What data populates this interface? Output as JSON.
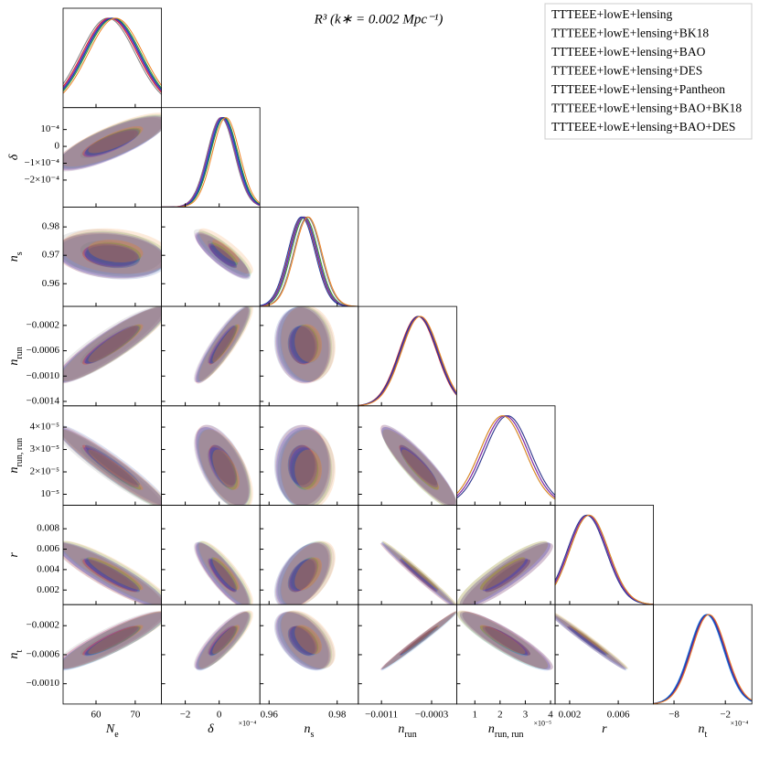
{
  "chart_data": {
    "type": "triangle",
    "title": "R³ (k∗ = 0.002 Mpc⁻¹)",
    "params": [
      {
        "label": "N",
        "sub": "e",
        "xlim": [
          51.6,
          76.7
        ],
        "xticks": [
          60,
          70
        ],
        "sd": 7
      },
      {
        "label": "δ",
        "sub": "",
        "xlim": [
          -0.00034,
          0.00024
        ],
        "ylim": [
          -0.00036,
          0.00023
        ],
        "xexp": "×10⁻⁴",
        "xticks": [
          {
            "value": -0.0002,
            "label": "−2"
          },
          0
        ],
        "yticks": [
          {
            "value": 0.0001,
            "label": "10⁻⁴"
          },
          0,
          {
            "value": -0.0001,
            "label": "−1×10⁻⁴"
          },
          {
            "value": -0.0002,
            "label": "−2×10⁻⁴"
          }
        ],
        "sd": 8e-05
      },
      {
        "label": "n",
        "sub": "s",
        "xlim": [
          0.9573,
          0.9862
        ],
        "ylim": [
          0.952,
          0.987
        ],
        "xticks": [
          0.96,
          0.98
        ],
        "yticks": [
          0.96,
          0.97,
          0.98
        ],
        "sd": 0.004
      },
      {
        "label": "n",
        "sub": "run",
        "xlim": [
          -0.00147,
          0.0001
        ],
        "ylim": [
          -0.00147,
          0.0001
        ],
        "xticks": [
          {
            "value": -0.0011,
            "label": "−0.0011"
          },
          {
            "value": -0.0003,
            "label": "−0.0003"
          }
        ],
        "yticks": [
          {
            "value": -0.0002,
            "label": "−0.0002"
          },
          {
            "value": -0.0006,
            "label": "−0.0006"
          },
          {
            "value": -0.001,
            "label": "−0.0010"
          },
          {
            "value": -0.0014,
            "label": "−0.0014"
          }
        ],
        "sd": 0.0003
      },
      {
        "label": "n",
        "sub": "run, run",
        "xlim": [
          2.8e-06,
          4.18e-05
        ],
        "ylim": [
          5.1e-06,
          4.95e-05
        ],
        "xexp": "×10⁻⁵",
        "xticks": [
          {
            "value": 1e-05,
            "label": "1"
          },
          {
            "value": 2e-05,
            "label": "2"
          },
          {
            "value": 3e-05,
            "label": "3"
          },
          {
            "value": 4e-05,
            "label": "4"
          }
        ],
        "yticks": [
          {
            "value": 1e-05,
            "label": "10⁻⁵"
          },
          {
            "value": 2e-05,
            "label": "2×10⁻⁵"
          },
          {
            "value": 3e-05,
            "label": "3×10⁻⁵"
          },
          {
            "value": 4e-05,
            "label": "4×10⁻⁵"
          }
        ],
        "sd": 9e-06
      },
      {
        "label": "r",
        "sub": "",
        "xlim": [
          0.0008,
          0.0089
        ],
        "ylim": [
          0.00057,
          0.0103
        ],
        "xticks": [
          0.002,
          0.006
        ],
        "yticks": [
          0.002,
          0.004,
          0.006,
          0.008
        ],
        "sd": 0.0016
      },
      {
        "label": "n",
        "sub": "t",
        "xlim": [
          -0.00104,
          0.00011
        ],
        "ylim": [
          -0.00128,
          9e-05
        ],
        "xexp": "×10⁻⁴",
        "xticks": [
          {
            "value": -0.0008,
            "label": "−8"
          },
          {
            "value": -0.0002,
            "label": "−2"
          }
        ],
        "yticks": [
          {
            "value": -0.0002,
            "label": "−0.0002"
          },
          {
            "value": -0.0006,
            "label": "−0.0006"
          },
          {
            "value": -0.001,
            "label": "−0.0010"
          }
        ],
        "sd": 0.0002
      }
    ],
    "corr": [
      [
        1,
        0.8,
        -0.2,
        0.9,
        -0.95,
        -0.9,
        0.9
      ],
      [
        0.8,
        1,
        -0.85,
        0.9,
        -0.6,
        -0.85,
        0.85
      ],
      [
        -0.2,
        -0.85,
        1,
        -0.1,
        0,
        0.5,
        -0.5
      ],
      [
        0.9,
        0.9,
        -0.1,
        1,
        -0.9,
        -0.99,
        0.99
      ],
      [
        -0.95,
        -0.6,
        0,
        -0.9,
        1,
        0.9,
        -0.9
      ],
      [
        -0.9,
        -0.85,
        0.5,
        -0.99,
        0.9,
        1,
        -0.99
      ],
      [
        0.9,
        0.85,
        -0.5,
        0.99,
        -0.9,
        -0.99,
        1
      ]
    ],
    "series": [
      {
        "name": "TTTEEE+lowE+lensing",
        "color": "#808080",
        "means": [
          63,
          1e-05,
          0.9712,
          -0.0005,
          2.2e-05,
          0.0035,
          -0.0004
        ]
      },
      {
        "name": "TTTEEE+lowE+lensing+BK18",
        "color": "#d62728",
        "means": [
          63.5,
          2e-05,
          0.9698,
          -0.00052,
          2.3e-05,
          0.0034,
          -0.00041
        ]
      },
      {
        "name": "TTTEEE+lowE+lensing+BAO",
        "color": "#2ca02c",
        "means": [
          64.5,
          3e-05,
          0.9705,
          -0.00049,
          2.1e-05,
          0.0036,
          -0.0004
        ]
      },
      {
        "name": "TTTEEE+lowE+lensing+DES",
        "color": "#1f77e4",
        "means": [
          64,
          2e-05,
          0.97,
          -0.0005,
          2.2e-05,
          0.0035,
          -0.00042
        ]
      },
      {
        "name": "TTTEEE+lowE+lensing+Pantheon",
        "color": "#9020a0",
        "means": [
          63.8,
          1.5e-05,
          0.9702,
          -0.0005,
          2.2e-05,
          0.0035,
          -0.0004
        ]
      },
      {
        "name": "TTTEEE+lowE+lensing+BAO+BK18",
        "color": "#1f3fa0",
        "means": [
          64.2,
          2.5e-05,
          0.9695,
          -0.00051,
          2.3e-05,
          0.0034,
          -0.00041
        ]
      },
      {
        "name": "TTTEEE+lowE+lensing+BAO+DES",
        "color": "#f08020",
        "means": [
          65,
          4e-05,
          0.9715,
          -0.00048,
          2.1e-05,
          0.0036,
          -0.00039
        ]
      }
    ]
  }
}
